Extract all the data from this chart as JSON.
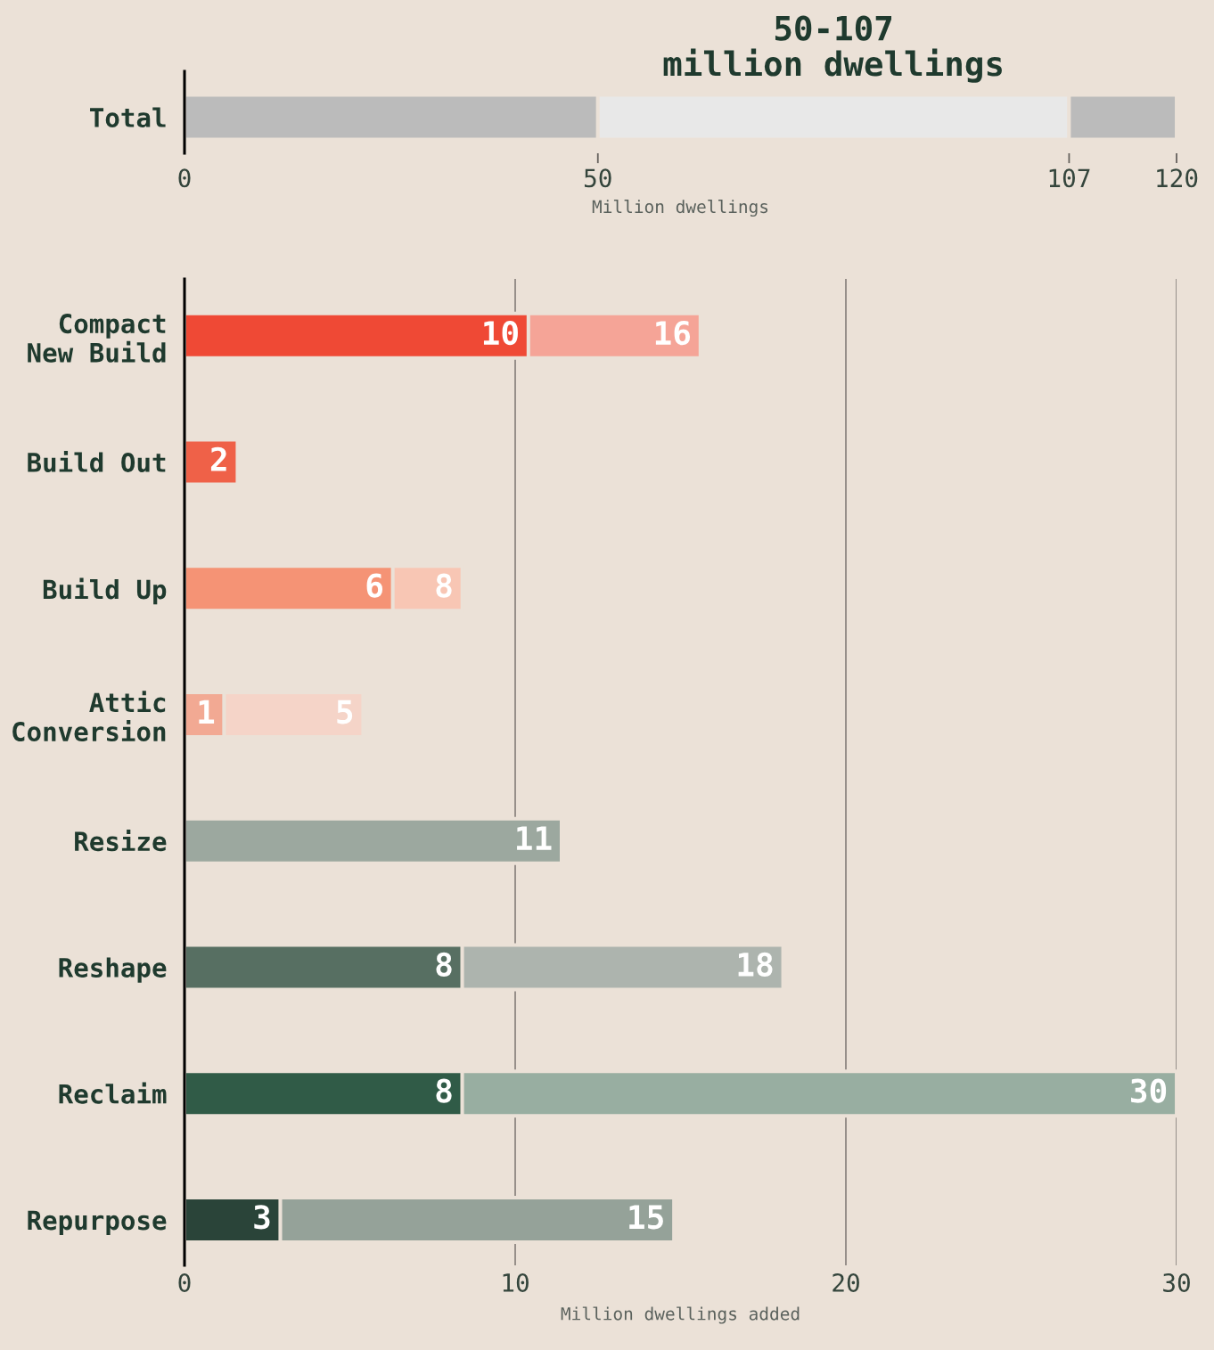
{
  "chart_data": [
    {
      "type": "bar",
      "orientation": "horizontal",
      "stacked": true,
      "title": "50-107\nmillion dwellings",
      "categories": [
        "Total"
      ],
      "series": [
        {
          "color": "#bbbbbb",
          "values": [
            50
          ]
        },
        {
          "color": "#e8e8e8",
          "values": [
            57
          ]
        },
        {
          "color": "#bbbbbb",
          "values": [
            13
          ]
        }
      ],
      "xlim": [
        0,
        120
      ],
      "xticks": [
        0,
        50,
        107,
        120
      ],
      "xlabel": "Million dwellings",
      "grid": false
    },
    {
      "type": "bar",
      "orientation": "horizontal",
      "stacked": true,
      "categories": [
        "Compact\nNew Build",
        "Build Out",
        "Build Up",
        "Attic\nConversion",
        "Resize",
        "Reshape",
        "Reclaim",
        "Repurpose"
      ],
      "series": [
        {
          "colors": [
            "#ef4935",
            "#ef6148",
            "#f59375",
            "#f2a993",
            "#9ca89f",
            "#576f62",
            "#305b47",
            "#2a4439"
          ],
          "values": [
            10.4,
            1.6,
            6.3,
            1.2,
            11.4,
            8.4,
            8.4,
            2.9
          ],
          "value_labels": [
            "10",
            null,
            "6",
            "1",
            null,
            "8",
            "8",
            "3"
          ]
        },
        {
          "colors": [
            "#f5a497",
            null,
            "#f8c6b4",
            "#f5d4c8",
            null,
            "#adb4ae",
            "#98aea1",
            "#95a299"
          ],
          "values": [
            5.2,
            null,
            2.1,
            4.2,
            null,
            9.7,
            21.6,
            11.9
          ]
        }
      ],
      "totals": [
        "16",
        "2",
        "8",
        "5",
        "11",
        "18",
        "30",
        "15"
      ],
      "xlim": [
        0,
        30
      ],
      "xticks": [
        0,
        10,
        20,
        30
      ],
      "xlabel": "Million dwellings added",
      "grid": "x"
    }
  ]
}
